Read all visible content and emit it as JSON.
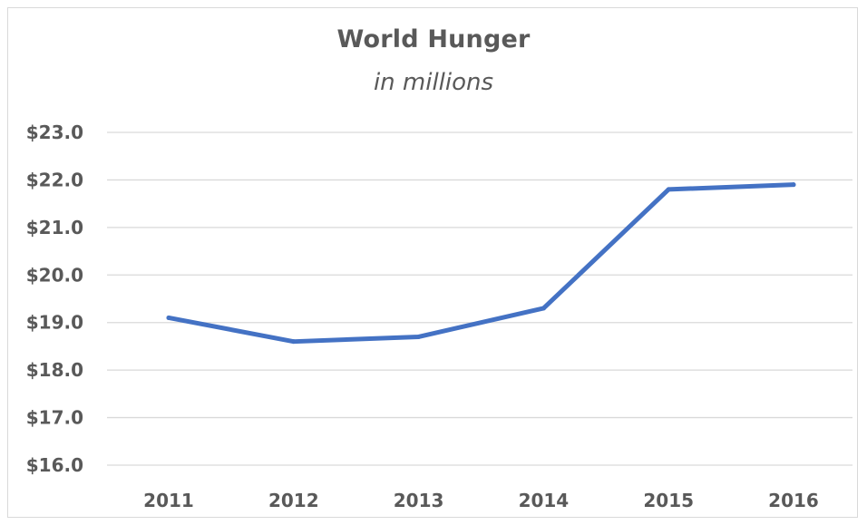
{
  "chart_data": {
    "type": "line",
    "title": "World Hunger",
    "subtitle": "in millions",
    "categories": [
      "2011",
      "2012",
      "2013",
      "2014",
      "2015",
      "2016"
    ],
    "series": [
      {
        "values": [
          19.1,
          18.6,
          18.7,
          19.3,
          21.8,
          21.9
        ]
      }
    ],
    "ylim": [
      16,
      23
    ],
    "yticks": [
      16,
      17,
      18,
      19,
      20,
      21,
      22,
      23
    ],
    "ytick_labels": [
      "$16.0",
      "$17.0",
      "$18.0",
      "$19.0",
      "$20.0",
      "$21.0",
      "$22.0",
      "$23.0"
    ],
    "grid": true,
    "legend": "none",
    "line_color": "#4472c4",
    "grid_color": "#d9d9d9",
    "text_color": "#595959"
  }
}
